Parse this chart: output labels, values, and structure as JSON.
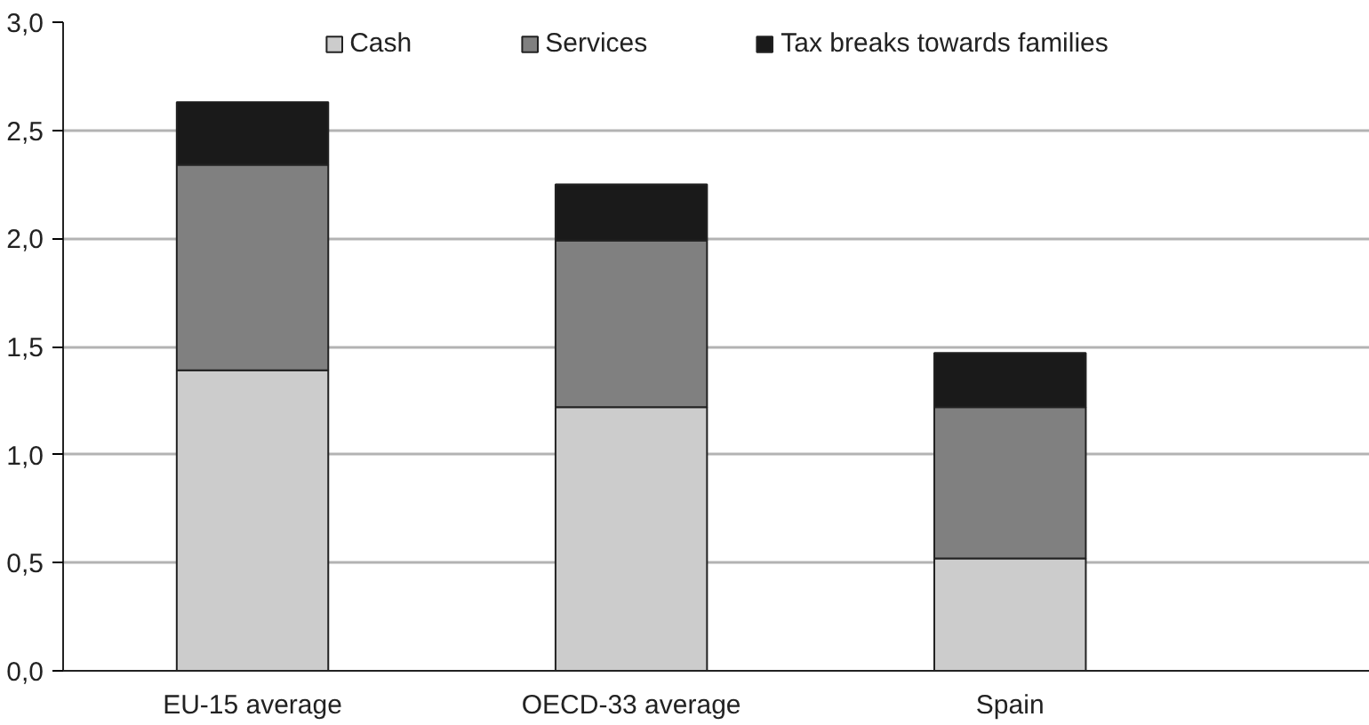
{
  "chart_data": {
    "type": "bar",
    "stacked": true,
    "categories": [
      "EU-15 average",
      "OECD-33 average",
      "Spain"
    ],
    "series": [
      {
        "name": "Cash",
        "color": "#cccccc",
        "values": [
          1.39,
          1.22,
          0.52
        ]
      },
      {
        "name": "Services",
        "color": "#808080",
        "values": [
          0.95,
          0.77,
          0.7
        ]
      },
      {
        "name": "Tax breaks towards families",
        "color": "#1a1a1a",
        "values": [
          0.29,
          0.26,
          0.25
        ]
      }
    ],
    "ylim": [
      0,
      3
    ],
    "yticks": [
      {
        "value": 0,
        "label": "0,0"
      },
      {
        "value": 0.5,
        "label": "0,5"
      },
      {
        "value": 1,
        "label": "1,0"
      },
      {
        "value": 1.5,
        "label": "1,5"
      },
      {
        "value": 2,
        "label": "2,0"
      },
      {
        "value": 2.5,
        "label": "2,5"
      },
      {
        "value": 3,
        "label": "3,0"
      }
    ],
    "grid": "y",
    "legend": "top"
  }
}
